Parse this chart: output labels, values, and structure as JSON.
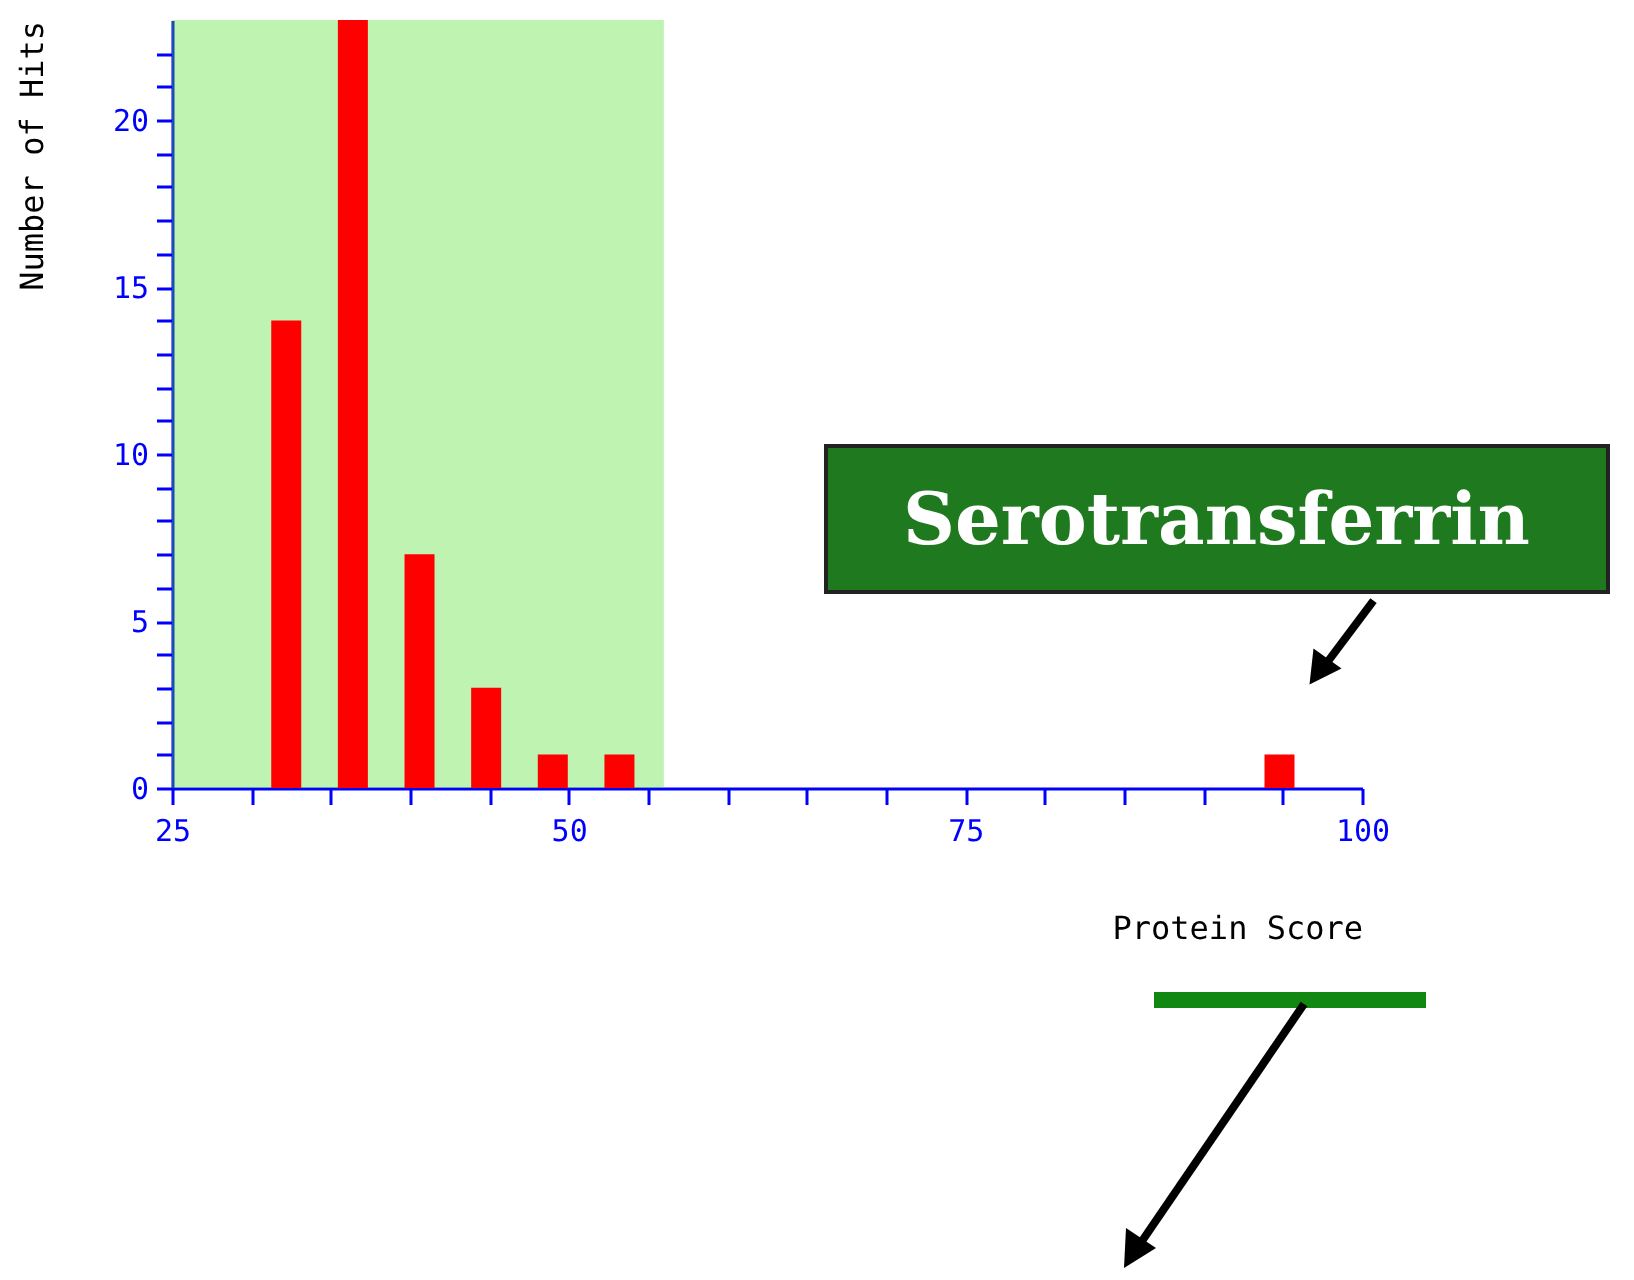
{
  "chart_data": {
    "type": "bar",
    "xlabel": "Protein Score",
    "ylabel": "Number of Hits",
    "x": [
      32.2,
      36.4,
      40.6,
      44.8,
      49,
      53.2,
      94.8
    ],
    "values": [
      14,
      23,
      7,
      3,
      1,
      1,
      1
    ],
    "color": "#ff0000",
    "xlim": [
      25,
      100
    ],
    "xticks": [
      25,
      {
        "value": 30,
        "label": null
      },
      {
        "value": 35,
        "label": null
      },
      {
        "value": 40,
        "label": null
      },
      {
        "value": 45,
        "label": null
      },
      50,
      {
        "value": 55,
        "label": null
      },
      {
        "value": 60,
        "label": null
      },
      {
        "value": 65,
        "label": null
      },
      {
        "value": 70,
        "label": null
      },
      75,
      {
        "value": 80,
        "label": null
      },
      {
        "value": 85,
        "label": null
      },
      {
        "value": 90,
        "label": null
      },
      {
        "value": 95,
        "label": null
      },
      100
    ],
    "ylim": [
      0,
      23
    ],
    "yticks": [
      0,
      {
        "value": 1,
        "label": null
      },
      {
        "value": 2,
        "label": null
      },
      {
        "value": 3,
        "label": null
      },
      {
        "value": 4,
        "label": null
      },
      5,
      {
        "value": 6,
        "label": null
      },
      {
        "value": 7,
        "label": null
      },
      {
        "value": 8,
        "label": null
      },
      {
        "value": 9,
        "label": null
      },
      10,
      {
        "value": 11,
        "label": null
      },
      {
        "value": 12,
        "label": null
      },
      {
        "value": 13,
        "label": null
      },
      {
        "value": 14,
        "label": null
      },
      15,
      {
        "value": 16,
        "label": null
      },
      {
        "value": 17,
        "label": null
      },
      {
        "value": 18,
        "label": null
      },
      {
        "value": 19,
        "label": null
      },
      20,
      {
        "value": 21,
        "label": null
      },
      {
        "value": 22,
        "label": null
      }
    ],
    "bands": [
      {
        "axis": "x",
        "from": 25,
        "to": 56,
        "color": "#44dd22"
      }
    ],
    "annotations": [
      {
        "text": "Serotransferrin",
        "x": 94.8,
        "y": 1
      }
    ],
    "grid": false
  }
}
